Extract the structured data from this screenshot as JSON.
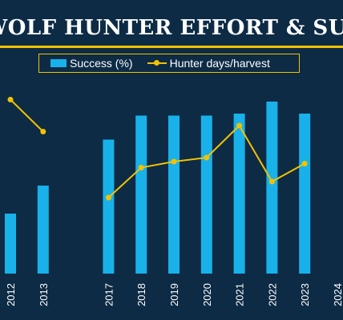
{
  "header": {
    "title": "WOLF HUNTER EFFORT & SUCCESS"
  },
  "colors": {
    "background": "#0d2b45",
    "accent": "#f2c200",
    "bar": "#19b1ea",
    "text": "#ffffff"
  },
  "chart_data": {
    "type": "bar",
    "title": "WOLF HUNTER EFFORT & SUCCESS",
    "categories": [
      "2012",
      "2013",
      "2017",
      "2018",
      "2019",
      "2020",
      "2021",
      "2022",
      "2023",
      "2024"
    ],
    "series": [
      {
        "name": "Success (%)",
        "type": "bar",
        "color": "#19b1ea",
        "values": [
          3.0,
          4.4,
          6.7,
          7.9,
          7.9,
          7.9,
          8.0,
          8.6,
          8.0,
          null
        ]
      },
      {
        "name": "Hunter days/harvest",
        "type": "line",
        "color": "#f2c200",
        "values": [
          8.7,
          7.1,
          3.8,
          5.3,
          5.6,
          5.8,
          7.4,
          4.6,
          5.5,
          null
        ]
      }
    ],
    "ylim": [
      0,
      10
    ],
    "grid": false,
    "legend": "top"
  }
}
